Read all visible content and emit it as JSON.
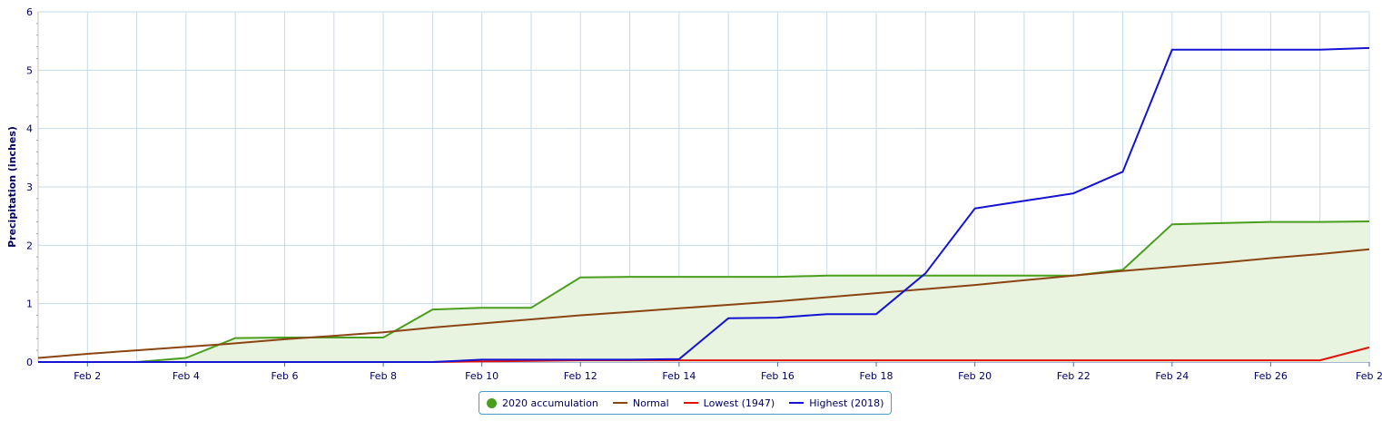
{
  "chart_data": {
    "type": "line",
    "title": "",
    "xlabel": "",
    "ylabel": "Precipitation (inches)",
    "xlim": [
      1,
      28
    ],
    "ylim": [
      0,
      6
    ],
    "grid": true,
    "legend_position": "bottom-center",
    "x_ticks": [
      {
        "x": 2,
        "label": "Feb 2"
      },
      {
        "x": 4,
        "label": "Feb 4"
      },
      {
        "x": 6,
        "label": "Feb 6"
      },
      {
        "x": 8,
        "label": "Feb 8"
      },
      {
        "x": 10,
        "label": "Feb 10"
      },
      {
        "x": 12,
        "label": "Feb 12"
      },
      {
        "x": 14,
        "label": "Feb 14"
      },
      {
        "x": 16,
        "label": "Feb 16"
      },
      {
        "x": 18,
        "label": "Feb 18"
      },
      {
        "x": 20,
        "label": "Feb 20"
      },
      {
        "x": 22,
        "label": "Feb 22"
      },
      {
        "x": 24,
        "label": "Feb 24"
      },
      {
        "x": 26,
        "label": "Feb 26"
      },
      {
        "x": 28,
        "label": "Feb 2"
      }
    ],
    "y_ticks": [
      0,
      1,
      2,
      3,
      4,
      5,
      6
    ],
    "series": [
      {
        "name": "2020 accumulation",
        "color": "#4a9e1e",
        "fill": "#e8f4e0",
        "style": "area",
        "marker": "circle",
        "points": [
          [
            1,
            0
          ],
          [
            2,
            0
          ],
          [
            3,
            0
          ],
          [
            4,
            0.07
          ],
          [
            5,
            0.41
          ],
          [
            6,
            0.42
          ],
          [
            7,
            0.42
          ],
          [
            8,
            0.42
          ],
          [
            9,
            0.9
          ],
          [
            10,
            0.93
          ],
          [
            11,
            0.93
          ],
          [
            12,
            1.45
          ],
          [
            13,
            1.46
          ],
          [
            14,
            1.46
          ],
          [
            15,
            1.46
          ],
          [
            16,
            1.46
          ],
          [
            17,
            1.48
          ],
          [
            18,
            1.48
          ],
          [
            19,
            1.48
          ],
          [
            20,
            1.48
          ],
          [
            21,
            1.48
          ],
          [
            22,
            1.48
          ],
          [
            23,
            1.58
          ],
          [
            24,
            2.36
          ],
          [
            25,
            2.38
          ],
          [
            26,
            2.4
          ],
          [
            27,
            2.4
          ],
          [
            28,
            2.41
          ]
        ]
      },
      {
        "name": "Normal",
        "color": "#8b4513",
        "style": "line",
        "points": [
          [
            1,
            0.07
          ],
          [
            2,
            0.14
          ],
          [
            3,
            0.2
          ],
          [
            4,
            0.26
          ],
          [
            5,
            0.32
          ],
          [
            6,
            0.39
          ],
          [
            7,
            0.45
          ],
          [
            8,
            0.51
          ],
          [
            9,
            0.59
          ],
          [
            10,
            0.66
          ],
          [
            11,
            0.73
          ],
          [
            12,
            0.8
          ],
          [
            13,
            0.86
          ],
          [
            14,
            0.92
          ],
          [
            15,
            0.98
          ],
          [
            16,
            1.04
          ],
          [
            17,
            1.11
          ],
          [
            18,
            1.18
          ],
          [
            19,
            1.25
          ],
          [
            20,
            1.32
          ],
          [
            21,
            1.4
          ],
          [
            22,
            1.48
          ],
          [
            23,
            1.56
          ],
          [
            24,
            1.63
          ],
          [
            25,
            1.7
          ],
          [
            26,
            1.78
          ],
          [
            27,
            1.85
          ],
          [
            28,
            1.93
          ]
        ]
      },
      {
        "name": "Lowest (1947)",
        "color": "#e3120b",
        "style": "line",
        "points": [
          [
            1,
            0
          ],
          [
            2,
            0
          ],
          [
            3,
            0
          ],
          [
            4,
            0
          ],
          [
            5,
            0
          ],
          [
            6,
            0
          ],
          [
            7,
            0
          ],
          [
            8,
            0
          ],
          [
            9,
            0
          ],
          [
            10,
            0.01
          ],
          [
            11,
            0.02
          ],
          [
            12,
            0.03
          ],
          [
            13,
            0.03
          ],
          [
            14,
            0.03
          ],
          [
            15,
            0.03
          ],
          [
            16,
            0.03
          ],
          [
            17,
            0.03
          ],
          [
            18,
            0.03
          ],
          [
            19,
            0.03
          ],
          [
            20,
            0.03
          ],
          [
            21,
            0.03
          ],
          [
            22,
            0.03
          ],
          [
            23,
            0.03
          ],
          [
            24,
            0.03
          ],
          [
            25,
            0.03
          ],
          [
            26,
            0.03
          ],
          [
            27,
            0.03
          ],
          [
            28,
            0.25
          ]
        ]
      },
      {
        "name": "Highest (2018)",
        "color": "#1414d2",
        "style": "line",
        "points": [
          [
            1,
            0
          ],
          [
            2,
            0
          ],
          [
            3,
            0
          ],
          [
            4,
            0
          ],
          [
            5,
            0
          ],
          [
            6,
            0
          ],
          [
            7,
            0
          ],
          [
            8,
            0
          ],
          [
            9,
            0
          ],
          [
            10,
            0.04
          ],
          [
            11,
            0.04
          ],
          [
            12,
            0.04
          ],
          [
            13,
            0.04
          ],
          [
            14,
            0.05
          ],
          [
            15,
            0.75
          ],
          [
            16,
            0.76
          ],
          [
            17,
            0.82
          ],
          [
            18,
            0.82
          ],
          [
            19,
            1.52
          ],
          [
            20,
            2.63
          ],
          [
            21,
            2.76
          ],
          [
            22,
            2.89
          ],
          [
            23,
            3.26
          ],
          [
            24,
            5.35
          ],
          [
            25,
            5.35
          ],
          [
            26,
            5.35
          ],
          [
            27,
            5.35
          ],
          [
            28,
            5.38
          ]
        ]
      }
    ]
  }
}
